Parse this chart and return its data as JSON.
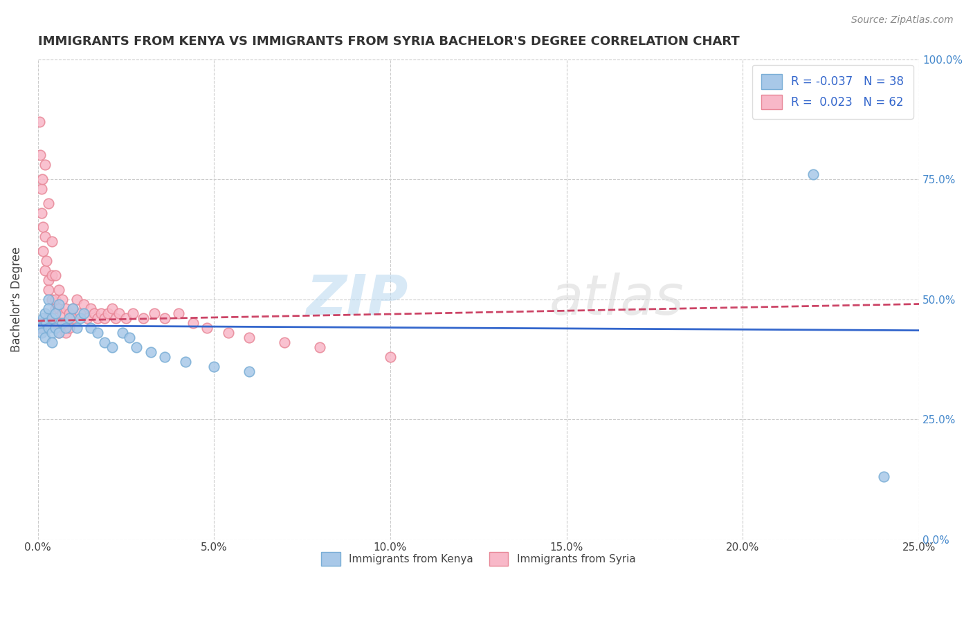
{
  "title": "IMMIGRANTS FROM KENYA VS IMMIGRANTS FROM SYRIA BACHELOR'S DEGREE CORRELATION CHART",
  "source": "Source: ZipAtlas.com",
  "ylabel": "Bachelor's Degree",
  "watermark": "ZIPatlas",
  "kenya_R": -0.037,
  "kenya_N": 38,
  "syria_R": 0.023,
  "syria_N": 62,
  "kenya_color": "#a8c8e8",
  "kenya_edge_color": "#7aaed6",
  "syria_color": "#f8b8c8",
  "syria_edge_color": "#e88898",
  "kenya_line_color": "#3366cc",
  "syria_line_color": "#cc4466",
  "xlim": [
    0.0,
    0.25
  ],
  "ylim": [
    0.0,
    1.0
  ],
  "xticks": [
    0.0,
    0.05,
    0.1,
    0.15,
    0.2,
    0.25
  ],
  "xtick_labels": [
    "0.0%",
    "5.0%",
    "10.0%",
    "15.0%",
    "20.0%",
    "25.0%"
  ],
  "yticks": [
    0.0,
    0.25,
    0.5,
    0.75,
    1.0
  ],
  "ytick_labels": [
    "0.0%",
    "25.0%",
    "50.0%",
    "75.0%",
    "100.0%"
  ],
  "kenya_x": [
    0.0005,
    0.001,
    0.001,
    0.0015,
    0.002,
    0.002,
    0.0025,
    0.003,
    0.003,
    0.003,
    0.004,
    0.004,
    0.004,
    0.005,
    0.005,
    0.006,
    0.006,
    0.007,
    0.008,
    0.009,
    0.01,
    0.011,
    0.012,
    0.013,
    0.015,
    0.017,
    0.019,
    0.021,
    0.024,
    0.026,
    0.028,
    0.032,
    0.036,
    0.042,
    0.05,
    0.06,
    0.22,
    0.24
  ],
  "kenya_y": [
    0.45,
    0.44,
    0.43,
    0.46,
    0.47,
    0.42,
    0.45,
    0.5,
    0.48,
    0.44,
    0.46,
    0.43,
    0.41,
    0.47,
    0.44,
    0.49,
    0.43,
    0.45,
    0.44,
    0.46,
    0.48,
    0.44,
    0.46,
    0.47,
    0.44,
    0.43,
    0.41,
    0.4,
    0.43,
    0.42,
    0.4,
    0.39,
    0.38,
    0.37,
    0.36,
    0.35,
    0.76,
    0.13
  ],
  "syria_x": [
    0.0003,
    0.0005,
    0.0007,
    0.001,
    0.001,
    0.0013,
    0.0015,
    0.0015,
    0.002,
    0.002,
    0.002,
    0.0025,
    0.003,
    0.003,
    0.003,
    0.003,
    0.004,
    0.004,
    0.004,
    0.004,
    0.005,
    0.005,
    0.005,
    0.006,
    0.006,
    0.006,
    0.006,
    0.007,
    0.007,
    0.008,
    0.008,
    0.008,
    0.009,
    0.009,
    0.01,
    0.01,
    0.011,
    0.012,
    0.013,
    0.014,
    0.015,
    0.016,
    0.017,
    0.018,
    0.019,
    0.02,
    0.021,
    0.022,
    0.023,
    0.025,
    0.027,
    0.03,
    0.033,
    0.036,
    0.04,
    0.044,
    0.048,
    0.054,
    0.06,
    0.07,
    0.08,
    0.1
  ],
  "syria_y": [
    0.44,
    0.87,
    0.8,
    0.73,
    0.68,
    0.75,
    0.65,
    0.6,
    0.78,
    0.63,
    0.56,
    0.58,
    0.7,
    0.54,
    0.52,
    0.46,
    0.62,
    0.55,
    0.5,
    0.45,
    0.55,
    0.5,
    0.48,
    0.52,
    0.48,
    0.45,
    0.43,
    0.5,
    0.47,
    0.48,
    0.45,
    0.43,
    0.47,
    0.44,
    0.48,
    0.46,
    0.5,
    0.47,
    0.49,
    0.46,
    0.48,
    0.47,
    0.46,
    0.47,
    0.46,
    0.47,
    0.48,
    0.46,
    0.47,
    0.46,
    0.47,
    0.46,
    0.47,
    0.46,
    0.47,
    0.45,
    0.44,
    0.43,
    0.42,
    0.41,
    0.4,
    0.38
  ]
}
